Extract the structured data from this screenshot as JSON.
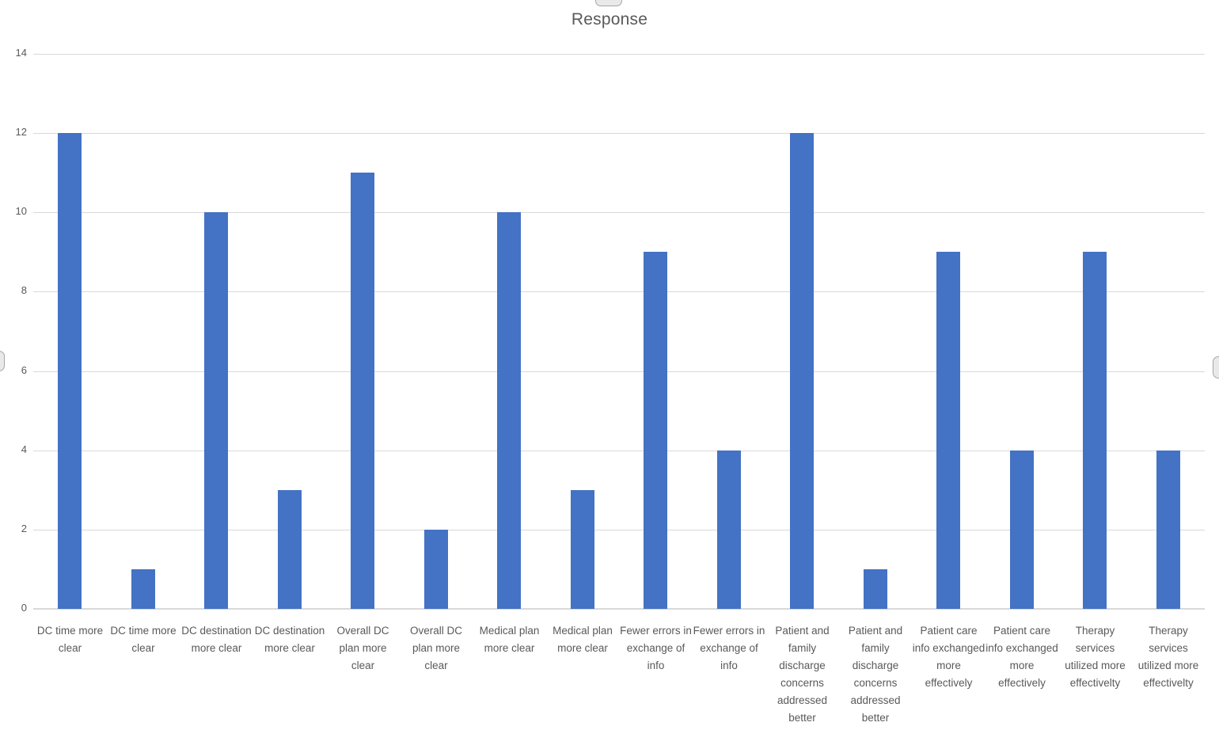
{
  "chart_data": {
    "type": "bar",
    "title": "Response",
    "categories": [
      "DC time more clear",
      "DC time more clear",
      "DC destination more clear",
      "DC destination more clear",
      "Overall DC plan more clear",
      "Overall DC plan more clear",
      "Medical plan more clear",
      "Medical plan more clear",
      "Fewer errors in exchange of info",
      "Fewer errors in exchange of info",
      "Patient and family discharge concerns addressed better",
      "Patient and family discharge concerns addressed better",
      "Patient care info exchanged more effectively",
      "Patient care info exchanged more effectively",
      "Therapy services utilized more effectivelty",
      "Therapy services utilized more effectivelty"
    ],
    "values": [
      12,
      1,
      10,
      3,
      11,
      2,
      10,
      3,
      9,
      4,
      12,
      1,
      9,
      4,
      9,
      4
    ],
    "xlabel": "",
    "ylabel": "",
    "ylim": [
      0,
      14
    ],
    "yticks": [
      0,
      2,
      4,
      6,
      8,
      10,
      12,
      14
    ],
    "grid": true,
    "legend_position": "none",
    "bar_color": "#4472C4",
    "gridline_color": "#D9D9D9",
    "text_color": "#595959",
    "selection_handles": [
      "top-center",
      "left-middle",
      "right-middle"
    ]
  }
}
